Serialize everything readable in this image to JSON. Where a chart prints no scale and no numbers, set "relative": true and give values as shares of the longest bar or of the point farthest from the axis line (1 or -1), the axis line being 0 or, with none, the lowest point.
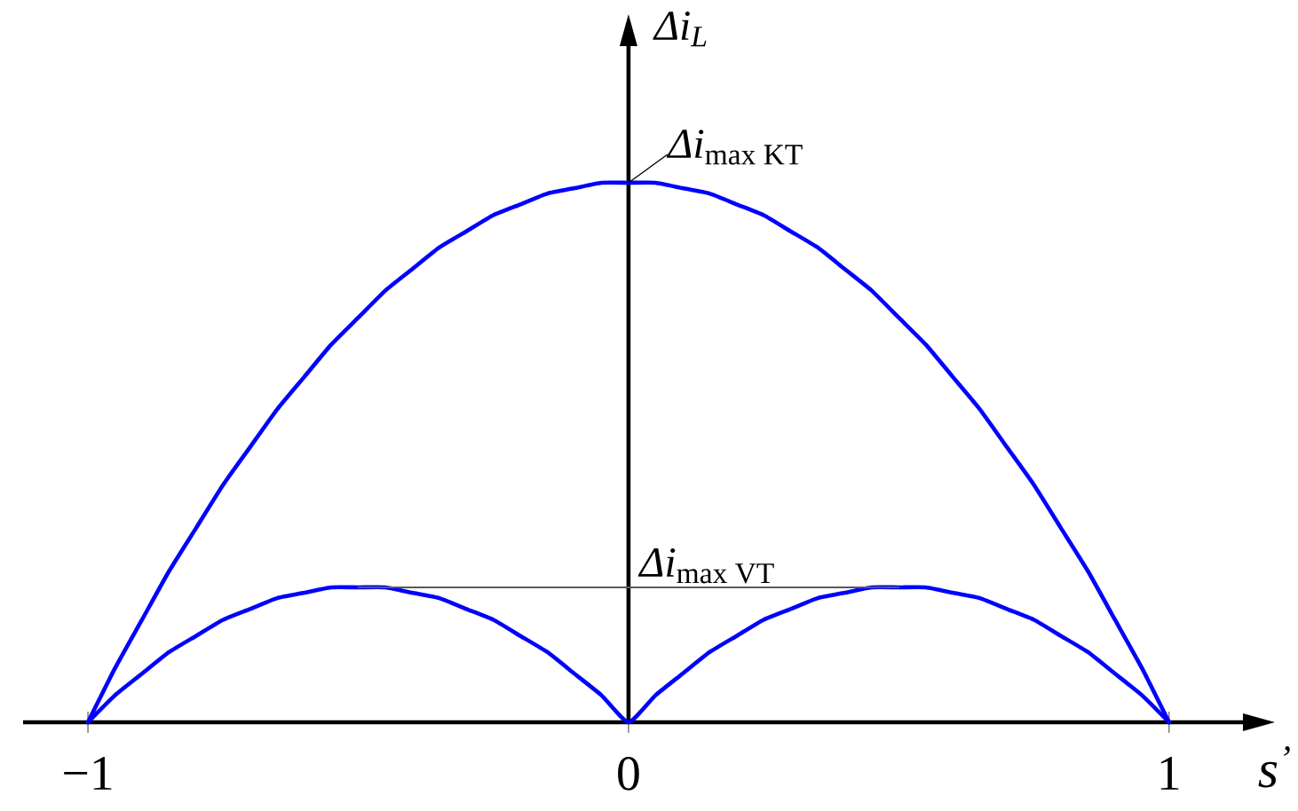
{
  "chart_data": {
    "type": "line",
    "relative": true,
    "xlabel": "s$^{’}$",
    "ylabel": "Δi$_{L}$",
    "x": [
      -1,
      -0.95,
      -0.9,
      -0.85,
      -0.8,
      -0.75,
      -0.7,
      -0.65,
      -0.6,
      -0.55,
      -0.5,
      -0.45,
      -0.4,
      -0.35,
      -0.3,
      -0.25,
      -0.2,
      -0.15,
      -0.1,
      -0.05,
      0,
      0.05,
      0.1,
      0.15,
      0.2,
      0.25,
      0.3,
      0.35,
      0.4,
      0.45,
      0.5,
      0.55,
      0.6,
      0.65,
      0.7,
      0.75,
      0.8,
      0.85,
      0.9,
      0.95,
      1
    ],
    "xlim": [
      -1.12,
      1.14
    ],
    "xticks": [
      {
        "value": -1,
        "label": "−1"
      },
      0,
      1
    ],
    "series": [
      {
        "color": "#0000ff",
        "values": [
          0,
          0.1,
          0.19,
          0.28,
          0.36,
          0.44,
          0.51,
          0.58,
          0.64,
          0.7,
          0.75,
          0.8,
          0.84,
          0.88,
          0.91,
          0.94,
          0.96,
          0.98,
          0.99,
          1,
          1,
          1,
          0.99,
          0.98,
          0.96,
          0.94,
          0.91,
          0.88,
          0.84,
          0.8,
          0.75,
          0.7,
          0.64,
          0.58,
          0.51,
          0.44,
          0.36,
          0.28,
          0.19,
          0.1,
          0
        ]
      },
      {
        "color": "#0000ff",
        "values": [
          0,
          0.05,
          0.09,
          0.13,
          0.16,
          0.19,
          0.21,
          0.23,
          0.24,
          0.25,
          0.25,
          0.25,
          0.24,
          0.23,
          0.21,
          0.19,
          0.16,
          0.13,
          0.09,
          0.05,
          0,
          0.05,
          0.09,
          0.13,
          0.16,
          0.19,
          0.21,
          0.23,
          0.24,
          0.25,
          0.25,
          0.25,
          0.24,
          0.23,
          0.21,
          0.19,
          0.16,
          0.13,
          0.09,
          0.05,
          0
        ]
      },
      {
        "color": "#595959",
        "x": [
          -0.5,
          0.5
        ],
        "values": [
          0.25,
          0.25
        ]
      }
    ],
    "annotations": [
      {
        "text": "\\textit{Δi}_{\\textrm{max KT}}",
        "x": 0,
        "y": 1
      },
      {
        "text": "\\textit{Δi}_{\\textrm{max VT}}",
        "x": 0,
        "y": 0.25
      }
    ],
    "marker": "none",
    "line_style": "solid"
  }
}
